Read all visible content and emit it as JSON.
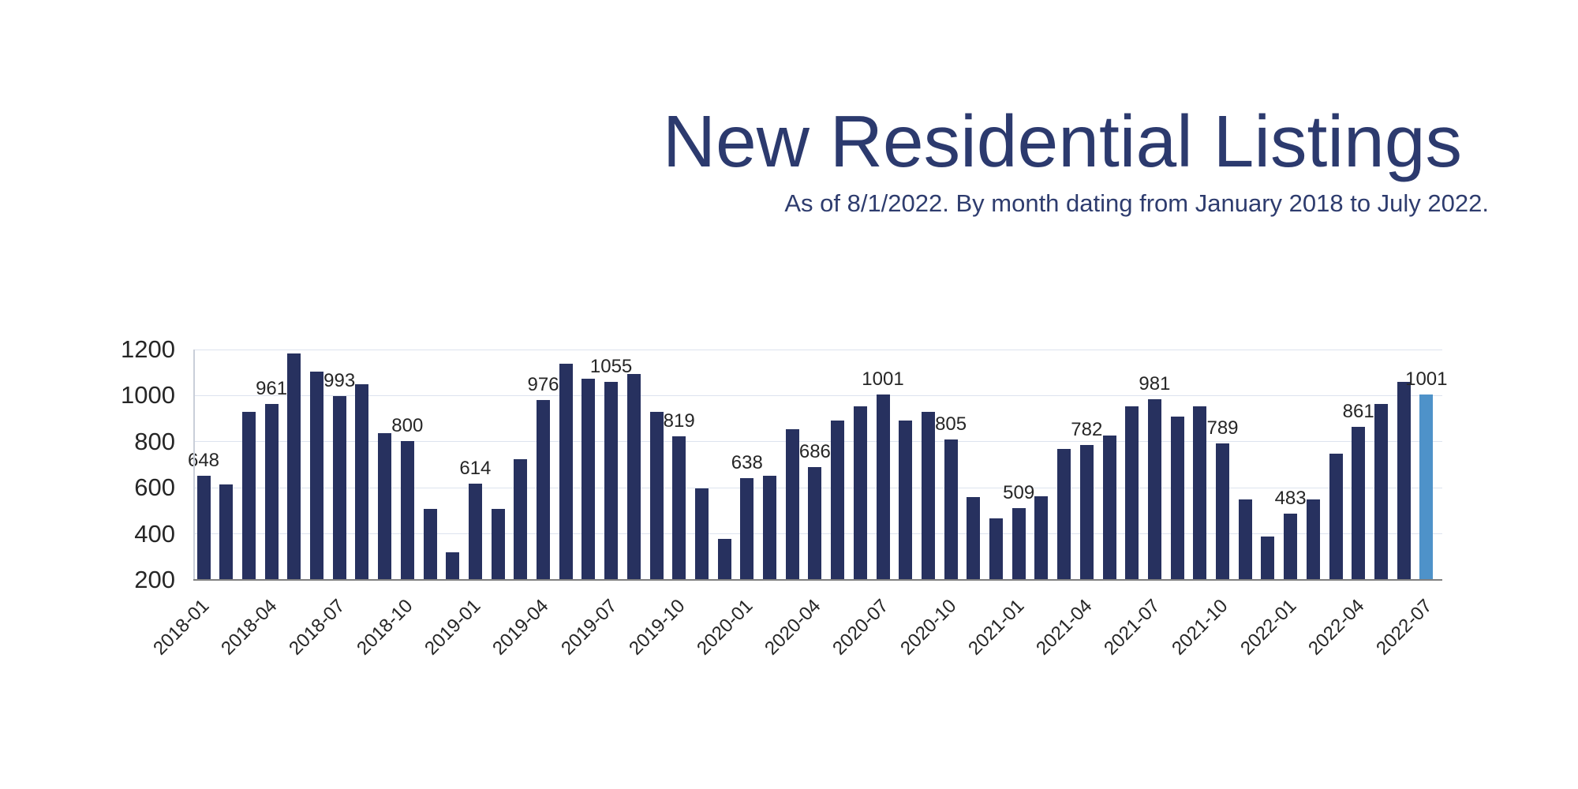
{
  "page": {
    "background_color": "#ffffff"
  },
  "header": {
    "title": "New Residential Listings",
    "subtitle": "As of 8/1/2022. By month dating from January 2018 to July 2022.",
    "title_color": "#2c3a6e"
  },
  "chart_data": {
    "type": "bar",
    "title": "New Residential Listings",
    "subtitle": "As of 8/1/2022. By month dating from January 2018 to July 2022.",
    "categories": [
      "2018-01",
      "2018-02",
      "2018-03",
      "2018-04",
      "2018-05",
      "2018-06",
      "2018-07",
      "2018-08",
      "2018-09",
      "2018-10",
      "2018-11",
      "2018-12",
      "2019-01",
      "2019-02",
      "2019-03",
      "2019-04",
      "2019-05",
      "2019-06",
      "2019-07",
      "2019-08",
      "2019-09",
      "2019-10",
      "2019-11",
      "2019-12",
      "2020-01",
      "2020-02",
      "2020-03",
      "2020-04",
      "2020-05",
      "2020-06",
      "2020-07",
      "2020-08",
      "2020-09",
      "2020-10",
      "2020-11",
      "2020-12",
      "2021-01",
      "2021-02",
      "2021-03",
      "2021-04",
      "2021-05",
      "2021-06",
      "2021-07",
      "2021-08",
      "2021-09",
      "2021-10",
      "2021-11",
      "2021-12",
      "2022-01",
      "2022-02",
      "2022-03",
      "2022-04",
      "2022-05",
      "2022-06",
      "2022-07"
    ],
    "values": [
      648,
      610,
      925,
      961,
      1180,
      1100,
      993,
      1045,
      835,
      800,
      505,
      315,
      614,
      505,
      720,
      976,
      1135,
      1070,
      1055,
      1090,
      925,
      819,
      595,
      375,
      638,
      650,
      850,
      686,
      890,
      950,
      1001,
      890,
      925,
      805,
      555,
      465,
      509,
      560,
      765,
      782,
      825,
      950,
      981,
      905,
      950,
      789,
      545,
      385,
      483,
      545,
      745,
      861,
      960,
      1055,
      1001
    ],
    "labeled_values": [
      648,
      961,
      993,
      800,
      614,
      976,
      1055,
      819,
      638,
      686,
      1001,
      805,
      509,
      782,
      981,
      789,
      483,
      861,
      1001
    ],
    "label_every_n_bars": 3,
    "x_tick_labels": [
      "2018-01",
      "2018-04",
      "2018-07",
      "2018-10",
      "2019-01",
      "2019-04",
      "2019-07",
      "2019-10",
      "2020-01",
      "2020-04",
      "2020-07",
      "2020-10",
      "2021-01",
      "2021-04",
      "2021-07",
      "2021-10",
      "2022-01",
      "2022-04",
      "2022-07"
    ],
    "y_ticks": [
      200,
      400,
      600,
      800,
      1000,
      1200
    ],
    "ylim": [
      200,
      1200
    ],
    "xlabel": "",
    "ylabel": "",
    "grid": true,
    "legend": "none",
    "bar_color": "#27315f",
    "highlight_color": "#4e92c9",
    "highlight_index": 54,
    "gridline_color": "#dde3ee",
    "baseline_color": "#808080",
    "tick_text_color": "#262626"
  }
}
